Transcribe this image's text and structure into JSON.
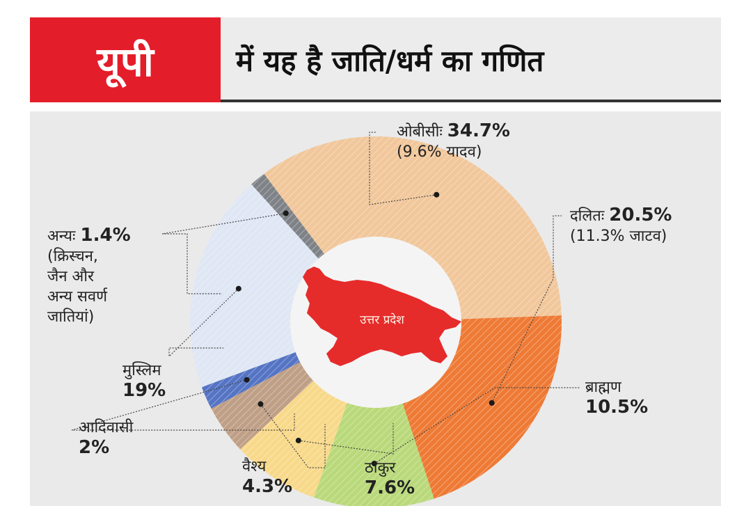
{
  "header": {
    "badge": "यूपी",
    "title": "में यह है जाति/धर्म का गणित"
  },
  "map_label": "उत्तर प्रदेश",
  "colors": {
    "header_red": "#e41d2a",
    "obc": "#f1c79b",
    "dalit": "#ee7a35",
    "brahmin": "#b9d97a",
    "thakur": "#f8d98a",
    "vaishya": "#bf9f86",
    "adivasi": "#5574c4",
    "muslim": "#dfe6f4",
    "others": "#7f8388",
    "map": "#e62b2b"
  },
  "chart_data": {
    "type": "pie",
    "title": "में यह है जाति/धर्म का गणित",
    "series": [
      {
        "name": "ओबीसीः",
        "value": 34.7,
        "value_label": "34.7%",
        "note": "(9.6% यादव)"
      },
      {
        "name": "दलितः",
        "value": 20.5,
        "value_label": "20.5%",
        "note": "(11.3% जाटव)"
      },
      {
        "name": "ब्राह्मण",
        "value": 10.5,
        "value_label": "10.5%"
      },
      {
        "name": "ठाकुर",
        "value": 7.6,
        "value_label": "7.6%"
      },
      {
        "name": "वैश्य",
        "value": 4.3,
        "value_label": "4.3%"
      },
      {
        "name": "आदिवासी",
        "value": 2,
        "value_label": "2%"
      },
      {
        "name": "मुस्लिम",
        "value": 19,
        "value_label": "19%"
      },
      {
        "name": "अन्यः",
        "value": 1.4,
        "value_label": "1.4%",
        "note_lines": [
          "(क्रिस्चन,",
          "जैन और",
          "अन्य सवर्ण",
          "जातियां)"
        ]
      }
    ]
  }
}
